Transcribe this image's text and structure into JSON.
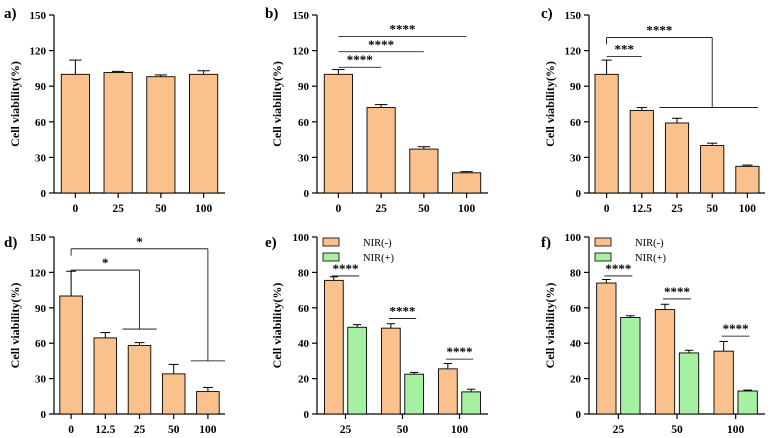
{
  "colors": {
    "orange": "#FBC18C",
    "green": "#A6F0A2",
    "axis": "#000000"
  },
  "chart_data": [
    {
      "panel": "a)",
      "type": "bar",
      "ylabel": "Cell viability(%)",
      "ylim": [
        0,
        150
      ],
      "yticks": [
        "0",
        "30",
        "60",
        "90",
        "120",
        "150"
      ],
      "categories": [
        "0",
        "25",
        "50",
        "100"
      ],
      "series": [
        {
          "name": "",
          "color": "orange",
          "values": [
            100,
            101.5,
            98,
            100
          ],
          "errors": [
            12,
            1,
            1.5,
            3
          ]
        }
      ],
      "brackets": []
    },
    {
      "panel": "b)",
      "type": "bar",
      "ylabel": "Cell viability(%)",
      "ylim": [
        0,
        150
      ],
      "yticks": [
        "0",
        "30",
        "60",
        "90",
        "120",
        "150"
      ],
      "categories": [
        "0",
        "25",
        "50",
        "100"
      ],
      "series": [
        {
          "name": "",
          "color": "orange",
          "values": [
            100,
            72,
            37,
            17
          ],
          "errors": [
            4,
            2.5,
            2,
            1
          ]
        }
      ],
      "brackets": [
        {
          "label": "****",
          "from": 0,
          "to": 1,
          "y": 106,
          "drop": false
        },
        {
          "label": "****",
          "from": 0,
          "to": 2,
          "y": 119,
          "drop": false
        },
        {
          "label": "****",
          "from": 0,
          "to": 3,
          "y": 132,
          "drop": false
        }
      ]
    },
    {
      "panel": "c)",
      "type": "bar",
      "ylabel": "Cell viability(%)",
      "ylim": [
        0,
        150
      ],
      "yticks": [
        "0",
        "30",
        "60",
        "90",
        "120",
        "150"
      ],
      "categories": [
        "0",
        "12.5",
        "25",
        "50",
        "100"
      ],
      "series": [
        {
          "name": "",
          "color": "orange",
          "values": [
            100,
            69.5,
            59,
            40,
            22.5
          ],
          "errors": [
            12,
            2.5,
            4,
            2,
            1
          ]
        }
      ],
      "brackets": [
        {
          "label": "***",
          "from": 0,
          "to": 1,
          "y": 115,
          "drop": false
        },
        {
          "label": "****",
          "from": 0,
          "to": 3,
          "y": 131,
          "drop": true,
          "drop_to": 72
        },
        {
          "label": "",
          "from": 1.5,
          "to": 4.3,
          "y": 72,
          "drop": false
        }
      ]
    },
    {
      "panel": "d)",
      "type": "bar",
      "ylabel": "Cell viability(%)",
      "ylim": [
        0,
        150
      ],
      "yticks": [
        "0",
        "30",
        "60",
        "90",
        "120",
        "150"
      ],
      "categories": [
        "0",
        "12.5",
        "25",
        "50",
        "100"
      ],
      "series": [
        {
          "name": "",
          "color": "orange",
          "values": [
            100,
            64.5,
            58,
            34,
            19
          ],
          "errors": [
            21,
            4.5,
            2.5,
            8,
            3.5
          ]
        }
      ],
      "brackets": [
        {
          "label": "*",
          "from": 0,
          "to": 2,
          "y": 122,
          "drop": true,
          "drop_to": 72
        },
        {
          "label": "*",
          "from": 0,
          "to": 4,
          "y": 140,
          "drop": true,
          "drop_to": 45
        },
        {
          "label": "",
          "from": 1.5,
          "to": 2.5,
          "y": 72,
          "drop": false
        },
        {
          "label": "",
          "from": 3.5,
          "to": 4.5,
          "y": 45,
          "drop": false
        }
      ]
    },
    {
      "panel": "e)",
      "type": "bar",
      "ylabel": "Cell viability(%)",
      "ylim": [
        0,
        100
      ],
      "yticks": [
        "0",
        "20",
        "40",
        "60",
        "80",
        "100"
      ],
      "categories": [
        "25",
        "50",
        "100"
      ],
      "legend": {
        "position": "top-left"
      },
      "series": [
        {
          "name": "NIR(-)",
          "color": "orange",
          "values": [
            75.5,
            48.5,
            25.5
          ],
          "errors": [
            2,
            2.5,
            3
          ]
        },
        {
          "name": "NIR(+)",
          "color": "green",
          "values": [
            49,
            22.5,
            12.5
          ],
          "errors": [
            1.5,
            1,
            1.5
          ]
        }
      ],
      "brackets": [
        {
          "label": "****",
          "group": 0,
          "y": 78
        },
        {
          "label": "****",
          "group": 1,
          "y": 54
        },
        {
          "label": "****",
          "group": 2,
          "y": 31
        }
      ]
    },
    {
      "panel": "f)",
      "type": "bar",
      "ylabel": "Cell viability(%)",
      "ylim": [
        0,
        100
      ],
      "yticks": [
        "0",
        "20",
        "40",
        "60",
        "80",
        "100"
      ],
      "categories": [
        "25",
        "50",
        "100"
      ],
      "legend": {
        "position": "top-left"
      },
      "series": [
        {
          "name": "NIR(-)",
          "color": "orange",
          "values": [
            74,
            59,
            35.5
          ],
          "errors": [
            2,
            3,
            5.5
          ]
        },
        {
          "name": "NIR(+)",
          "color": "green",
          "values": [
            54.5,
            34.5,
            13
          ],
          "errors": [
            1,
            1.5,
            0.5
          ]
        }
      ],
      "brackets": [
        {
          "label": "****",
          "group": 0,
          "y": 78
        },
        {
          "label": "****",
          "group": 1,
          "y": 65
        },
        {
          "label": "****",
          "group": 2,
          "y": 44
        }
      ]
    }
  ]
}
